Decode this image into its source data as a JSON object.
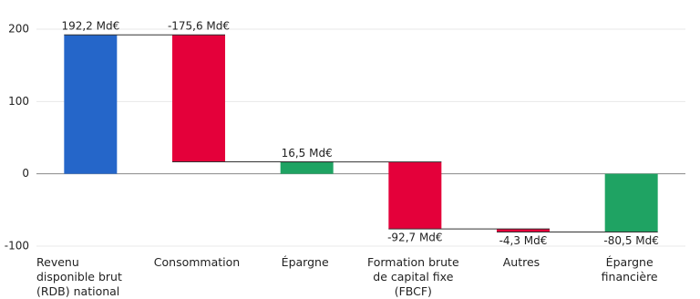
{
  "chart_data": {
    "type": "waterfall",
    "categories": [
      "Revenu disponible brut (RDB) national",
      "Consommation",
      "Épargne",
      "Formation brute de capital fixe (FBCF)",
      "Autres",
      "Épargne financière"
    ],
    "values": [
      192.2,
      -175.6,
      16.5,
      -92.7,
      -4.3,
      -80.5
    ],
    "value_labels": [
      "192,2 Md€",
      "-175,6 Md€",
      "16,5 Md€",
      "-92,7 Md€",
      "-4,3 Md€",
      "-80,5 Md€"
    ],
    "is_total": [
      true,
      false,
      true,
      false,
      false,
      true
    ],
    "label_position": [
      "above",
      "above",
      "above",
      "below",
      "below",
      "below"
    ],
    "colors": [
      "#2566c9",
      "#e4003a",
      "#1fa363",
      "#e4003a",
      "#e4003a",
      "#1fa363"
    ],
    "ylim": [
      -100,
      200
    ],
    "yticks": [
      -100,
      0,
      100,
      200
    ],
    "grid": true
  }
}
